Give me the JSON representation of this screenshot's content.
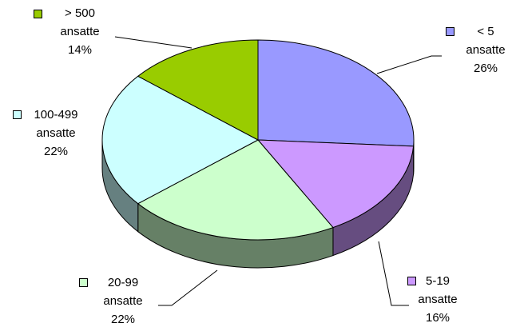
{
  "chart_data": {
    "type": "pie3d",
    "categories": [
      "< 5 ansatte",
      "5-19 ansatte",
      "20-99 ansatte",
      "100-499 ansatte",
      "> 500 ansatte"
    ],
    "values": [
      26,
      16,
      22,
      22,
      14
    ],
    "value_labels": [
      "26%",
      "16%",
      "22%",
      "22%",
      "14%"
    ],
    "colors": [
      "#9999ff",
      "#cc99ff",
      "#ccffcc",
      "#ccffff",
      "#99cc00"
    ]
  }
}
